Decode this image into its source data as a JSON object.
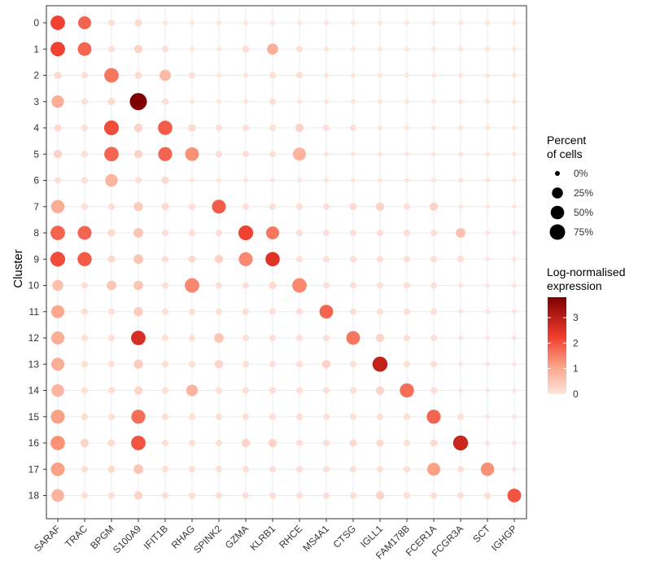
{
  "chart_data": {
    "type": "dotplot",
    "xlabel": "",
    "ylabel": "Cluster",
    "genes": [
      "SARAF",
      "TRAC",
      "BPGM",
      "S100A9",
      "IFIT1B",
      "RHAG",
      "SPINK2",
      "GZMA",
      "KLRB1",
      "RHCE",
      "MS4A1",
      "CTSG",
      "IGLL1",
      "FAM178B",
      "FCER1A",
      "FCGR3A",
      "SCT",
      "IGHGP"
    ],
    "clusters": [
      "0",
      "1",
      "2",
      "3",
      "4",
      "5",
      "6",
      "7",
      "8",
      "9",
      "10",
      "11",
      "12",
      "13",
      "14",
      "15",
      "16",
      "17",
      "18"
    ],
    "notes": "Each row holds [percent_of_cells, log_normalised_expression] per gene in the order of 'genes'.",
    "rows": [
      [
        [
          62,
          2.2
        ],
        [
          45,
          1.8
        ],
        [
          2,
          0.1
        ],
        [
          4,
          0.2
        ],
        [
          0,
          0
        ],
        [
          0,
          0
        ],
        [
          0,
          0
        ],
        [
          0,
          0
        ],
        [
          0,
          0
        ],
        [
          0,
          0
        ],
        [
          0,
          0
        ],
        [
          0,
          0
        ],
        [
          0,
          0
        ],
        [
          0,
          0
        ],
        [
          0,
          0
        ],
        [
          0,
          0
        ],
        [
          0,
          0
        ],
        [
          0,
          0
        ]
      ],
      [
        [
          62,
          2.2
        ],
        [
          52,
          1.8
        ],
        [
          2,
          0.1
        ],
        [
          8,
          0.3
        ],
        [
          2,
          0.1
        ],
        [
          0,
          0
        ],
        [
          0,
          0
        ],
        [
          4,
          0.1
        ],
        [
          25,
          0.9
        ],
        [
          2,
          0.1
        ],
        [
          0,
          0
        ],
        [
          0,
          0
        ],
        [
          0,
          0
        ],
        [
          0,
          0
        ],
        [
          0,
          0
        ],
        [
          0,
          0
        ],
        [
          0,
          0
        ],
        [
          0,
          0
        ]
      ],
      [
        [
          4,
          0.2
        ],
        [
          2,
          0.1
        ],
        [
          62,
          1.6
        ],
        [
          4,
          0.2
        ],
        [
          28,
          0.7
        ],
        [
          2,
          0.1
        ],
        [
          0,
          0
        ],
        [
          0,
          0
        ],
        [
          2,
          0.1
        ],
        [
          2,
          0.1
        ],
        [
          0,
          0
        ],
        [
          0,
          0
        ],
        [
          0,
          0
        ],
        [
          0,
          0
        ],
        [
          0,
          0
        ],
        [
          0,
          0
        ],
        [
          0,
          0
        ],
        [
          0,
          0
        ]
      ],
      [
        [
          38,
          0.9
        ],
        [
          2,
          0.1
        ],
        [
          4,
          0.2
        ],
        [
          100,
          3.9
        ],
        [
          2,
          0.1
        ],
        [
          0,
          0
        ],
        [
          0,
          0
        ],
        [
          0,
          0
        ],
        [
          2,
          0.1
        ],
        [
          0,
          0
        ],
        [
          0,
          0
        ],
        [
          0,
          0
        ],
        [
          0,
          0
        ],
        [
          0,
          0
        ],
        [
          0,
          0
        ],
        [
          0,
          0
        ],
        [
          0,
          0
        ],
        [
          0,
          0
        ]
      ],
      [
        [
          4,
          0.2
        ],
        [
          2,
          0.1
        ],
        [
          65,
          2.1
        ],
        [
          8,
          0.3
        ],
        [
          60,
          1.9
        ],
        [
          4,
          0.2
        ],
        [
          2,
          0.1
        ],
        [
          2,
          0.1
        ],
        [
          2,
          0.1
        ],
        [
          8,
          0.3
        ],
        [
          2,
          0.1
        ],
        [
          2,
          0.1
        ],
        [
          0,
          0
        ],
        [
          0,
          0
        ],
        [
          0,
          0
        ],
        [
          0,
          0
        ],
        [
          0,
          0
        ],
        [
          0,
          0
        ]
      ],
      [
        [
          8,
          0.3
        ],
        [
          2,
          0.1
        ],
        [
          62,
          1.8
        ],
        [
          8,
          0.3
        ],
        [
          56,
          1.8
        ],
        [
          52,
          1.3
        ],
        [
          2,
          0.1
        ],
        [
          2,
          0.1
        ],
        [
          2,
          0.1
        ],
        [
          45,
          0.8
        ],
        [
          0,
          0
        ],
        [
          0,
          0
        ],
        [
          0,
          0
        ],
        [
          0,
          0
        ],
        [
          0,
          0
        ],
        [
          0,
          0
        ],
        [
          0,
          0
        ],
        [
          0,
          0
        ]
      ],
      [
        [
          2,
          0.1
        ],
        [
          2,
          0.1
        ],
        [
          40,
          0.8
        ],
        [
          2,
          0.1
        ],
        [
          4,
          0.2
        ],
        [
          0,
          0
        ],
        [
          0,
          0
        ],
        [
          0,
          0
        ],
        [
          0,
          0
        ],
        [
          0,
          0
        ],
        [
          0,
          0
        ],
        [
          0,
          0
        ],
        [
          0,
          0
        ],
        [
          0,
          0
        ],
        [
          0,
          0
        ],
        [
          0,
          0
        ],
        [
          0,
          0
        ],
        [
          0,
          0
        ]
      ],
      [
        [
          50,
          0.9
        ],
        [
          2,
          0.1
        ],
        [
          2,
          0.1
        ],
        [
          12,
          0.4
        ],
        [
          4,
          0.2
        ],
        [
          2,
          0.1
        ],
        [
          55,
          1.9
        ],
        [
          2,
          0.1
        ],
        [
          2,
          0.1
        ],
        [
          2,
          0.1
        ],
        [
          2,
          0.1
        ],
        [
          4,
          0.2
        ],
        [
          8,
          0.3
        ],
        [
          2,
          0.1
        ],
        [
          8,
          0.3
        ],
        [
          0,
          0
        ],
        [
          0,
          0
        ],
        [
          0,
          0
        ]
      ],
      [
        [
          62,
          1.8
        ],
        [
          55,
          1.8
        ],
        [
          4,
          0.2
        ],
        [
          15,
          0.5
        ],
        [
          2,
          0.1
        ],
        [
          2,
          0.1
        ],
        [
          2,
          0.1
        ],
        [
          66,
          2.2
        ],
        [
          45,
          1.6
        ],
        [
          2,
          0.1
        ],
        [
          2,
          0.1
        ],
        [
          2,
          0.1
        ],
        [
          2,
          0.1
        ],
        [
          2,
          0.1
        ],
        [
          2,
          0.1
        ],
        [
          15,
          0.6
        ],
        [
          0,
          0
        ],
        [
          0,
          0
        ]
      ],
      [
        [
          66,
          2.1
        ],
        [
          58,
          1.9
        ],
        [
          4,
          0.2
        ],
        [
          15,
          0.5
        ],
        [
          2,
          0.1
        ],
        [
          4,
          0.2
        ],
        [
          8,
          0.3
        ],
        [
          55,
          1.4
        ],
        [
          60,
          2.5
        ],
        [
          2,
          0.1
        ],
        [
          2,
          0.1
        ],
        [
          2,
          0.1
        ],
        [
          2,
          0.1
        ],
        [
          2,
          0.1
        ],
        [
          2,
          0.1
        ],
        [
          2,
          0.1
        ],
        [
          0,
          0
        ],
        [
          0,
          0
        ]
      ],
      [
        [
          25,
          0.6
        ],
        [
          2,
          0.1
        ],
        [
          15,
          0.5
        ],
        [
          15,
          0.5
        ],
        [
          2,
          0.1
        ],
        [
          62,
          1.4
        ],
        [
          2,
          0.1
        ],
        [
          2,
          0.1
        ],
        [
          4,
          0.2
        ],
        [
          62,
          1.4
        ],
        [
          2,
          0.1
        ],
        [
          2,
          0.1
        ],
        [
          2,
          0.1
        ],
        [
          2,
          0.1
        ],
        [
          2,
          0.1
        ],
        [
          0,
          0
        ],
        [
          0,
          0
        ],
        [
          0,
          0
        ]
      ],
      [
        [
          45,
          1.0
        ],
        [
          2,
          0.1
        ],
        [
          2,
          0.1
        ],
        [
          12,
          0.4
        ],
        [
          2,
          0.1
        ],
        [
          2,
          0.1
        ],
        [
          2,
          0.1
        ],
        [
          2,
          0.1
        ],
        [
          2,
          0.1
        ],
        [
          2,
          0.1
        ],
        [
          52,
          1.8
        ],
        [
          2,
          0.1
        ],
        [
          2,
          0.1
        ],
        [
          2,
          0.1
        ],
        [
          2,
          0.1
        ],
        [
          0,
          0
        ],
        [
          0,
          0
        ],
        [
          0,
          0
        ]
      ],
      [
        [
          45,
          0.9
        ],
        [
          2,
          0.1
        ],
        [
          2,
          0.1
        ],
        [
          62,
          2.6
        ],
        [
          2,
          0.1
        ],
        [
          2,
          0.1
        ],
        [
          15,
          0.5
        ],
        [
          2,
          0.1
        ],
        [
          2,
          0.1
        ],
        [
          2,
          0.1
        ],
        [
          2,
          0.1
        ],
        [
          52,
          1.6
        ],
        [
          8,
          0.3
        ],
        [
          2,
          0.1
        ],
        [
          2,
          0.1
        ],
        [
          0,
          0
        ],
        [
          0,
          0
        ],
        [
          0,
          0
        ]
      ],
      [
        [
          45,
          0.9
        ],
        [
          2,
          0.1
        ],
        [
          2,
          0.1
        ],
        [
          12,
          0.4
        ],
        [
          2,
          0.1
        ],
        [
          2,
          0.1
        ],
        [
          8,
          0.3
        ],
        [
          2,
          0.1
        ],
        [
          2,
          0.1
        ],
        [
          2,
          0.1
        ],
        [
          8,
          0.3
        ],
        [
          2,
          0.1
        ],
        [
          70,
          2.9
        ],
        [
          2,
          0.1
        ],
        [
          2,
          0.1
        ],
        [
          0,
          0
        ],
        [
          0,
          0
        ],
        [
          0,
          0
        ]
      ],
      [
        [
          40,
          0.8
        ],
        [
          2,
          0.1
        ],
        [
          2,
          0.1
        ],
        [
          8,
          0.3
        ],
        [
          2,
          0.1
        ],
        [
          30,
          0.8
        ],
        [
          2,
          0.1
        ],
        [
          2,
          0.1
        ],
        [
          2,
          0.1
        ],
        [
          2,
          0.1
        ],
        [
          2,
          0.1
        ],
        [
          2,
          0.1
        ],
        [
          8,
          0.3
        ],
        [
          58,
          1.7
        ],
        [
          2,
          0.1
        ],
        [
          0,
          0
        ],
        [
          0,
          0
        ],
        [
          0,
          0
        ]
      ],
      [
        [
          55,
          1.1
        ],
        [
          2,
          0.1
        ],
        [
          2,
          0.1
        ],
        [
          56,
          1.7
        ],
        [
          2,
          0.1
        ],
        [
          2,
          0.1
        ],
        [
          2,
          0.1
        ],
        [
          2,
          0.1
        ],
        [
          2,
          0.1
        ],
        [
          2,
          0.1
        ],
        [
          2,
          0.1
        ],
        [
          2,
          0.1
        ],
        [
          2,
          0.1
        ],
        [
          2,
          0.1
        ],
        [
          56,
          1.8
        ],
        [
          2,
          0.1
        ],
        [
          0,
          0
        ],
        [
          0,
          0
        ]
      ],
      [
        [
          60,
          1.3
        ],
        [
          8,
          0.3
        ],
        [
          4,
          0.2
        ],
        [
          62,
          2.0
        ],
        [
          2,
          0.1
        ],
        [
          2,
          0.1
        ],
        [
          2,
          0.1
        ],
        [
          8,
          0.3
        ],
        [
          8,
          0.3
        ],
        [
          2,
          0.1
        ],
        [
          2,
          0.1
        ],
        [
          4,
          0.2
        ],
        [
          4,
          0.2
        ],
        [
          2,
          0.1
        ],
        [
          4,
          0.2
        ],
        [
          68,
          2.8
        ],
        [
          0,
          0
        ],
        [
          0,
          0
        ]
      ],
      [
        [
          52,
          1.1
        ],
        [
          2,
          0.1
        ],
        [
          4,
          0.2
        ],
        [
          15,
          0.5
        ],
        [
          2,
          0.1
        ],
        [
          2,
          0.1
        ],
        [
          2,
          0.1
        ],
        [
          2,
          0.1
        ],
        [
          2,
          0.1
        ],
        [
          2,
          0.1
        ],
        [
          2,
          0.1
        ],
        [
          2,
          0.1
        ],
        [
          2,
          0.1
        ],
        [
          2,
          0.1
        ],
        [
          45,
          1.1
        ],
        [
          2,
          0.1
        ],
        [
          50,
          1.3
        ],
        [
          0,
          0
        ]
      ],
      [
        [
          42,
          0.8
        ],
        [
          2,
          0.1
        ],
        [
          2,
          0.1
        ],
        [
          8,
          0.3
        ],
        [
          2,
          0.1
        ],
        [
          2,
          0.1
        ],
        [
          2,
          0.1
        ],
        [
          2,
          0.1
        ],
        [
          2,
          0.1
        ],
        [
          2,
          0.1
        ],
        [
          2,
          0.1
        ],
        [
          2,
          0.1
        ],
        [
          8,
          0.3
        ],
        [
          2,
          0.1
        ],
        [
          2,
          0.1
        ],
        [
          2,
          0.1
        ],
        [
          2,
          0.1
        ],
        [
          52,
          2.0
        ]
      ]
    ],
    "size_legend": {
      "title_line1": "Percent",
      "title_line2": "of cells",
      "items": [
        {
          "label": "0%",
          "value": 0
        },
        {
          "label": "25%",
          "value": 25
        },
        {
          "label": "50%",
          "value": 50
        },
        {
          "label": "75%",
          "value": 75
        }
      ]
    },
    "color_legend": {
      "title_line1": "Log-normalised",
      "title_line2": "expression",
      "min": 0,
      "max": 3.8,
      "ticks": [
        "0",
        "1",
        "2",
        "3"
      ],
      "tick_values": [
        0,
        1,
        2,
        3
      ],
      "low_color": "#fde5de",
      "high_color": "#7f0000"
    },
    "grid": true,
    "legend_position": "right"
  }
}
